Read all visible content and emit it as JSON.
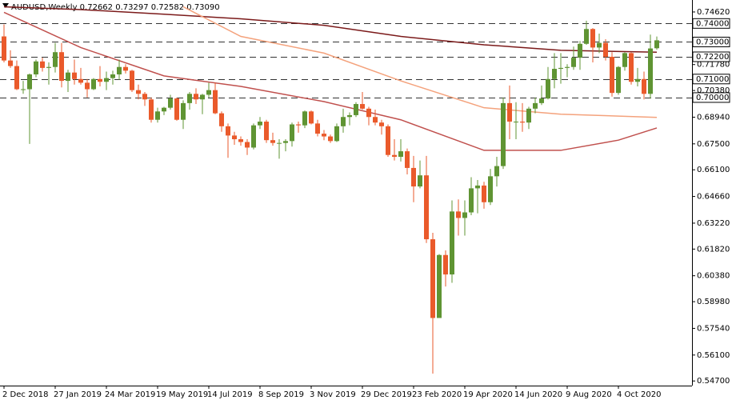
{
  "chart_data": {
    "type": "candlestick",
    "title": "AUDUSD,Weekly  0.72662 0.73297 0.72582 0.73090",
    "categories": [
      "2 Dec 2018",
      null,
      null,
      null,
      null,
      null,
      null,
      null,
      "27 Jan 2019",
      null,
      null,
      null,
      null,
      null,
      null,
      null,
      "24 Mar 2019",
      null,
      null,
      null,
      null,
      null,
      null,
      null,
      "19 May 2019",
      null,
      null,
      null,
      null,
      null,
      null,
      null,
      "14 Jul 2019",
      null,
      null,
      null,
      null,
      null,
      null,
      null,
      "8 Sep 2019",
      null,
      null,
      null,
      null,
      null,
      null,
      null,
      "3 Nov 2019",
      null,
      null,
      null,
      null,
      null,
      null,
      null,
      "29 Dec 2019",
      null,
      null,
      null,
      null,
      null,
      null,
      null,
      "23 Feb 2020",
      null,
      null,
      null,
      null,
      null,
      null,
      null,
      "19 Apr 2020",
      null,
      null,
      null,
      null,
      null,
      null,
      null,
      "14 Jun 2020",
      null,
      null,
      null,
      null,
      null,
      null,
      null,
      "9 Aug 2020",
      null,
      null,
      null,
      null,
      null,
      null,
      null,
      "4 Oct 2020",
      null,
      null,
      null,
      null,
      null,
      null
    ],
    "open": [
      0.733,
      0.72,
      0.717,
      0.7045,
      0.7045,
      0.7125,
      0.7195,
      0.716,
      0.7165,
      0.7245,
      0.709,
      0.7135,
      0.71,
      0.708,
      0.7045,
      0.71,
      0.7085,
      0.7105,
      0.7125,
      0.7165,
      0.7145,
      0.704,
      0.702,
      0.699,
      0.688,
      0.6925,
      0.6945,
      0.6995,
      0.688,
      0.697,
      0.702,
      0.699,
      0.7015,
      0.704,
      0.6915,
      0.6845,
      0.6795,
      0.6775,
      0.676,
      0.673,
      0.685,
      0.687,
      0.677,
      0.6755,
      0.6755,
      0.6765,
      0.6855,
      0.685,
      0.6925,
      0.686,
      0.6805,
      0.679,
      0.6765,
      0.6845,
      0.6895,
      0.6905,
      0.6965,
      0.694,
      0.6895,
      0.6865,
      0.6845,
      0.669,
      0.668,
      0.671,
      0.662,
      0.652,
      0.658,
      0.6235,
      0.581,
      0.615,
      0.6045,
      0.6385,
      0.635,
      0.638,
      0.651,
      0.6525,
      0.6435,
      0.6575,
      0.663,
      0.697,
      0.687,
      0.687,
      0.6865,
      0.694,
      0.697,
      0.6995,
      0.71,
      0.7155,
      0.716,
      0.7165,
      0.7215,
      0.729,
      0.737,
      0.727,
      0.7295,
      0.722,
      0.7025,
      0.7165,
      0.724,
      0.7085,
      0.71,
      0.702,
      0.72662
    ],
    "high": [
      0.7395,
      0.7255,
      0.72,
      0.709,
      0.713,
      0.7205,
      0.7215,
      0.719,
      0.7295,
      0.7295,
      0.715,
      0.7205,
      0.716,
      0.71,
      0.7105,
      0.717,
      0.714,
      0.7145,
      0.7205,
      0.718,
      0.715,
      0.707,
      0.703,
      0.7,
      0.6945,
      0.695,
      0.7015,
      0.7,
      0.6985,
      0.703,
      0.705,
      0.702,
      0.708,
      0.708,
      0.6925,
      0.686,
      0.6815,
      0.679,
      0.6775,
      0.686,
      0.6895,
      0.688,
      0.681,
      0.6775,
      0.6775,
      0.6865,
      0.687,
      0.693,
      0.693,
      0.688,
      0.6825,
      0.68,
      0.686,
      0.694,
      0.692,
      0.6975,
      0.703,
      0.695,
      0.6935,
      0.688,
      0.6855,
      0.6775,
      0.6775,
      0.6725,
      0.6685,
      0.666,
      0.6685,
      0.627,
      0.6155,
      0.6175,
      0.6445,
      0.645,
      0.6445,
      0.657,
      0.6555,
      0.6545,
      0.6615,
      0.668,
      0.7,
      0.7065,
      0.6975,
      0.697,
      0.695,
      0.7,
      0.7065,
      0.7165,
      0.724,
      0.724,
      0.718,
      0.7275,
      0.7305,
      0.7415,
      0.7375,
      0.7345,
      0.7315,
      0.7245,
      0.717,
      0.7245,
      0.7245,
      0.716,
      0.714,
      0.734,
      0.73297
    ],
    "low": [
      0.719,
      0.716,
      0.704,
      0.702,
      0.675,
      0.711,
      0.714,
      0.707,
      0.7135,
      0.7055,
      0.703,
      0.707,
      0.707,
      0.7,
      0.704,
      0.706,
      0.704,
      0.707,
      0.7095,
      0.713,
      0.703,
      0.699,
      0.6955,
      0.6865,
      0.6865,
      0.6905,
      0.6935,
      0.6875,
      0.683,
      0.6935,
      0.6965,
      0.691,
      0.7,
      0.691,
      0.6815,
      0.6675,
      0.6745,
      0.674,
      0.669,
      0.672,
      0.683,
      0.6755,
      0.674,
      0.667,
      0.671,
      0.6735,
      0.681,
      0.6835,
      0.6855,
      0.679,
      0.677,
      0.6755,
      0.676,
      0.681,
      0.685,
      0.6895,
      0.6935,
      0.685,
      0.685,
      0.68,
      0.668,
      0.666,
      0.6655,
      0.6585,
      0.6435,
      0.651,
      0.6215,
      0.551,
      0.581,
      0.598,
      0.6,
      0.6255,
      0.6255,
      0.6365,
      0.6375,
      0.64,
      0.642,
      0.652,
      0.6615,
      0.6775,
      0.6775,
      0.6815,
      0.683,
      0.6915,
      0.696,
      0.699,
      0.705,
      0.7075,
      0.711,
      0.715,
      0.715,
      0.7285,
      0.719,
      0.724,
      0.72,
      0.7005,
      0.7015,
      0.7145,
      0.707,
      0.706,
      0.699,
      0.6995,
      0.72582
    ],
    "close": [
      0.72,
      0.717,
      0.7045,
      0.7045,
      0.7125,
      0.7195,
      0.716,
      0.7165,
      0.7245,
      0.709,
      0.7135,
      0.71,
      0.708,
      0.7045,
      0.71,
      0.7085,
      0.7105,
      0.7125,
      0.7165,
      0.7145,
      0.704,
      0.702,
      0.699,
      0.688,
      0.6925,
      0.6945,
      0.6995,
      0.688,
      0.697,
      0.702,
      0.699,
      0.7015,
      0.704,
      0.6915,
      0.6845,
      0.6795,
      0.6775,
      0.676,
      0.673,
      0.685,
      0.687,
      0.677,
      0.6755,
      0.6755,
      0.6765,
      0.6855,
      0.685,
      0.6925,
      0.686,
      0.6805,
      0.679,
      0.6765,
      0.6845,
      0.6895,
      0.6905,
      0.6965,
      0.694,
      0.6895,
      0.6865,
      0.6845,
      0.669,
      0.668,
      0.671,
      0.662,
      0.652,
      0.658,
      0.6235,
      0.581,
      0.615,
      0.6045,
      0.6385,
      0.635,
      0.638,
      0.651,
      0.6525,
      0.6435,
      0.6575,
      0.663,
      0.697,
      0.687,
      0.687,
      0.6865,
      0.694,
      0.697,
      0.6995,
      0.71,
      0.7155,
      0.716,
      0.7165,
      0.7215,
      0.729,
      0.737,
      0.727,
      0.7295,
      0.722,
      0.7025,
      0.7165,
      0.724,
      0.7085,
      0.71,
      0.702,
      0.7265,
      0.7309
    ],
    "up_color": "#5f9433",
    "down_color": "#ea5a2b",
    "lines": [
      {
        "color": "#7b1a1a",
        "x": [
          0,
          12,
          25,
          37,
          50,
          62,
          75,
          87,
          102
        ],
        "values": [
          0.749,
          0.7475,
          0.745,
          0.7425,
          0.739,
          0.733,
          0.7285,
          0.7255,
          0.7245
        ]
      },
      {
        "color": "#f4a27c",
        "x": [
          28,
          37,
          50,
          62,
          75,
          87,
          102
        ],
        "values": [
          0.749,
          0.733,
          0.724,
          0.709,
          0.6945,
          0.691,
          0.6893
        ]
      },
      {
        "color": "#c0504d",
        "x": [
          0,
          12,
          25,
          37,
          50,
          62,
          75,
          87,
          96,
          102
        ],
        "values": [
          0.746,
          0.727,
          0.7117,
          0.706,
          0.6978,
          0.688,
          0.6715,
          0.6715,
          0.677,
          0.6836
        ]
      }
    ],
    "levels": [
      {
        "value": 0.74,
        "label": "0.74000"
      },
      {
        "value": 0.73,
        "label": "0.73000"
      },
      {
        "value": 0.722,
        "label": "0.72200"
      },
      {
        "value": 0.71,
        "label": "0.71000"
      },
      {
        "value": 0.7,
        "label": "0.70000"
      }
    ],
    "ylim": [
      0.5445,
      0.7505
    ],
    "yticks": [
      {
        "value": 0.7462,
        "label": "0.74620"
      },
      {
        "value": 0.7178,
        "label": "0.71780"
      },
      {
        "value": 0.7038,
        "label": "0.70380"
      },
      {
        "value": 0.6894,
        "label": "0.68940"
      },
      {
        "value": 0.675,
        "label": "0.67500"
      },
      {
        "value": 0.661,
        "label": "0.66100"
      },
      {
        "value": 0.6466,
        "label": "0.64660"
      },
      {
        "value": 0.6322,
        "label": "0.63220"
      },
      {
        "value": 0.6182,
        "label": "0.61820"
      },
      {
        "value": 0.6038,
        "label": "0.60380"
      },
      {
        "value": 0.5898,
        "label": "0.58980"
      },
      {
        "value": 0.5754,
        "label": "0.57540"
      },
      {
        "value": 0.561,
        "label": "0.56100"
      },
      {
        "value": 0.547,
        "label": "0.54700"
      }
    ]
  }
}
